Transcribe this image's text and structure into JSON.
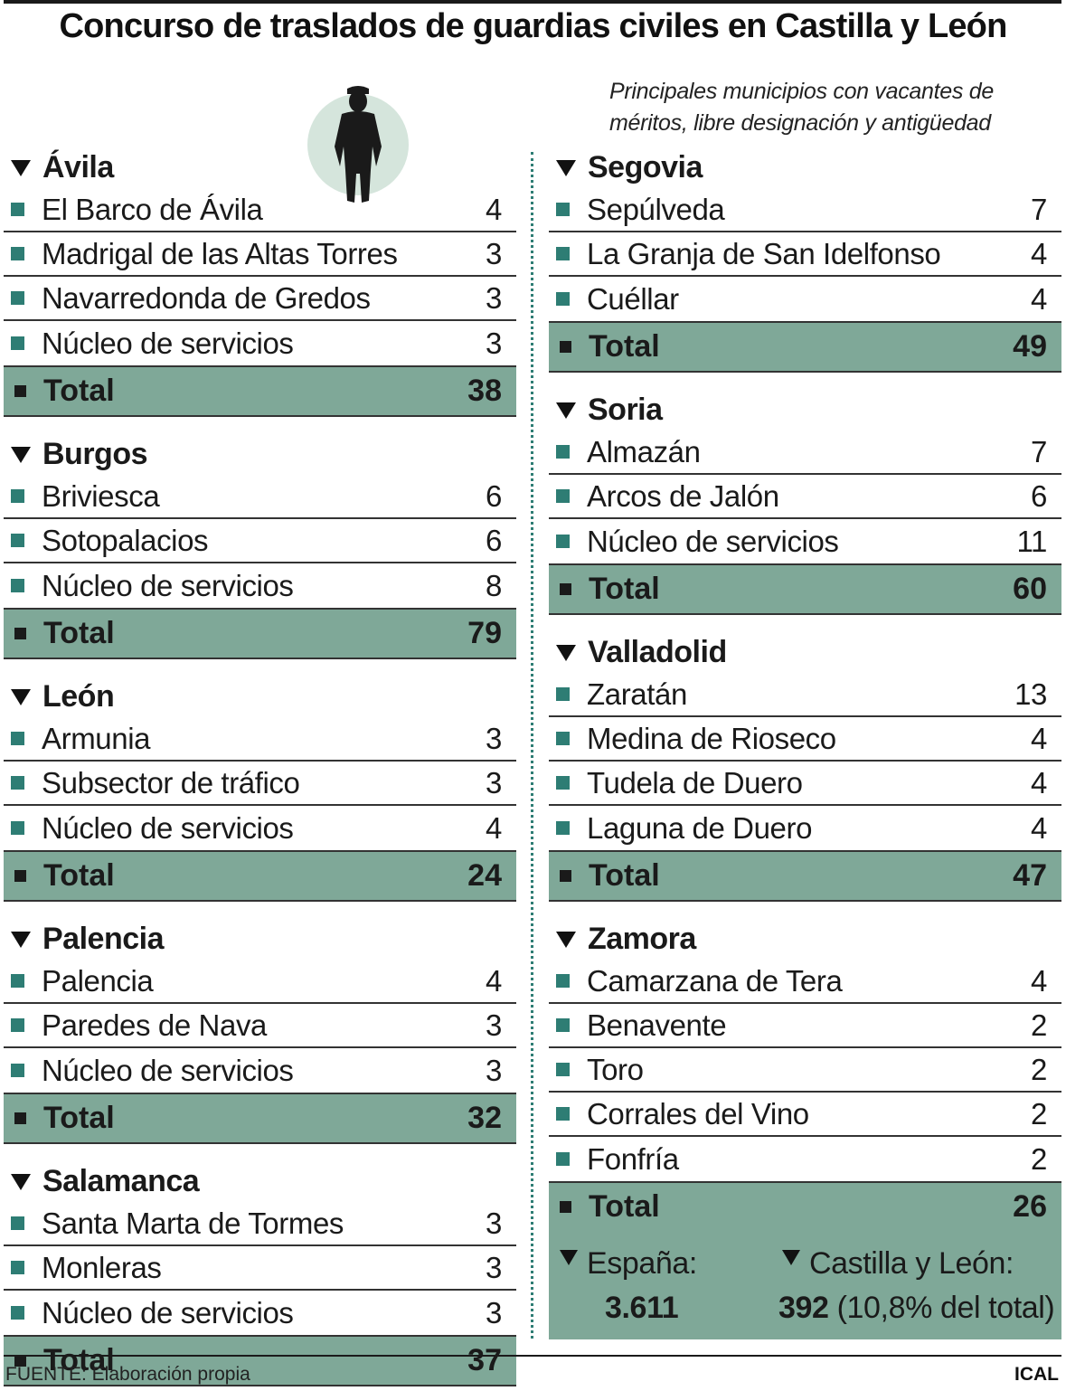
{
  "title": "Concurso de traslados de guardias civiles en Castilla y León",
  "subtitle": "Principales municipios con vacantes de méritos, libre designación y antigüedad",
  "provinces_left": [
    {
      "name": "Ávila",
      "rows": [
        {
          "name": "El Barco de Ávila",
          "value": "4"
        },
        {
          "name": "Madrigal de las Altas Torres",
          "value": "3"
        },
        {
          "name": "Navarredonda de Gredos",
          "value": "3"
        },
        {
          "name": "Núcleo de servicios",
          "value": "3"
        }
      ],
      "total_label": "Total",
      "total": "38"
    },
    {
      "name": "Burgos",
      "rows": [
        {
          "name": "Briviesca",
          "value": "6"
        },
        {
          "name": "Sotopalacios",
          "value": "6"
        },
        {
          "name": "Núcleo de servicios",
          "value": "8"
        }
      ],
      "total_label": "Total",
      "total": "79"
    },
    {
      "name": "León",
      "rows": [
        {
          "name": "Armunia",
          "value": "3"
        },
        {
          "name": "Subsector de tráfico",
          "value": "3"
        },
        {
          "name": "Núcleo de servicios",
          "value": "4"
        }
      ],
      "total_label": "Total",
      "total": "24"
    },
    {
      "name": "Palencia",
      "rows": [
        {
          "name": "Palencia",
          "value": "4"
        },
        {
          "name": "Paredes de Nava",
          "value": "3"
        },
        {
          "name": "Núcleo de servicios",
          "value": "3"
        }
      ],
      "total_label": "Total",
      "total": "32"
    },
    {
      "name": "Salamanca",
      "rows": [
        {
          "name": "Santa Marta de Tormes",
          "value": "3"
        },
        {
          "name": "Monleras",
          "value": "3"
        },
        {
          "name": "Núcleo de servicios",
          "value": "3"
        }
      ],
      "total_label": "Total",
      "total": "37"
    }
  ],
  "provinces_right": [
    {
      "name": "Segovia",
      "rows": [
        {
          "name": "Sepúlveda",
          "value": "7"
        },
        {
          "name": "La Granja de San Idelfonso",
          "value": "4"
        },
        {
          "name": "Cuéllar",
          "value": "4"
        }
      ],
      "total_label": "Total",
      "total": "49"
    },
    {
      "name": "Soria",
      "rows": [
        {
          "name": "Almazán",
          "value": "7"
        },
        {
          "name": "Arcos de Jalón",
          "value": "6"
        },
        {
          "name": "Núcleo de servicios",
          "value": "11"
        }
      ],
      "total_label": "Total",
      "total": "60"
    },
    {
      "name": "Valladolid",
      "rows": [
        {
          "name": "Zaratán",
          "value": "13"
        },
        {
          "name": "Medina de Rioseco",
          "value": "4"
        },
        {
          "name": "Tudela de Duero",
          "value": "4"
        },
        {
          "name": "Laguna de Duero",
          "value": "4"
        }
      ],
      "total_label": "Total",
      "total": "47"
    },
    {
      "name": "Zamora",
      "rows": [
        {
          "name": "Camarzana de Tera",
          "value": "4"
        },
        {
          "name": "Benavente",
          "value": "2"
        },
        {
          "name": "Toro",
          "value": "2"
        },
        {
          "name": "Corrales del Vino",
          "value": "2"
        },
        {
          "name": "Fonfría",
          "value": "2"
        }
      ],
      "total_label": "Total",
      "total": "26"
    }
  ],
  "summary": {
    "spain_label": "España:",
    "spain_value": "3.611",
    "cyl_label": "Castilla y León:",
    "cyl_value": "392",
    "cyl_note": "(10,8% del total)"
  },
  "source": "FUENTE: Elaboración propia",
  "credit": "ICAL",
  "icons": {
    "figure": "guardia-civil-silhouette-icon",
    "bullet": "square-bullet-icon",
    "header": "triangle-down-icon"
  },
  "colors": {
    "accent": "#2e7d74",
    "total_bg": "#7fa898",
    "background": "#ffffff",
    "figure_circle": "#d5e5dc"
  }
}
